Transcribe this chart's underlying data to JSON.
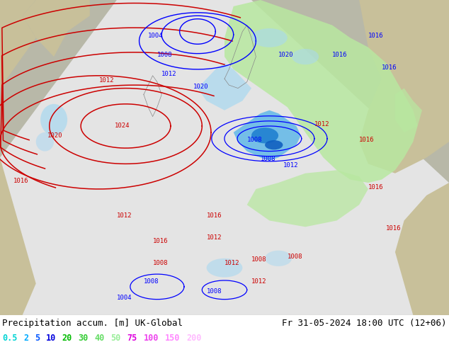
{
  "title_left": "Precipitation accum. [m] UK-Global",
  "title_right": "Fr 31-05-2024 18:00 UTC (12+06)",
  "legend_items": [
    {
      "val": "0.5",
      "color": "#00d4d4"
    },
    {
      "val": "2",
      "color": "#00aaff"
    },
    {
      "val": "5",
      "color": "#0055ff"
    },
    {
      "val": "10",
      "color": "#0000dd"
    },
    {
      "val": "20",
      "color": "#00bb00"
    },
    {
      "val": "30",
      "color": "#33cc33"
    },
    {
      "val": "40",
      "color": "#66dd66"
    },
    {
      "val": "50",
      "color": "#99ee99"
    },
    {
      "val": "75",
      "color": "#dd00dd"
    },
    {
      "val": "100",
      "color": "#ee44ee"
    },
    {
      "val": "150",
      "color": "#ff88ff"
    },
    {
      "val": "200",
      "color": "#ffbbff"
    }
  ],
  "bg_outside": "#b0b0a0",
  "bg_cone": "#e8e8e8",
  "land_outside": "#c8c09a",
  "fig_width": 6.34,
  "fig_height": 4.9,
  "dpi": 100
}
